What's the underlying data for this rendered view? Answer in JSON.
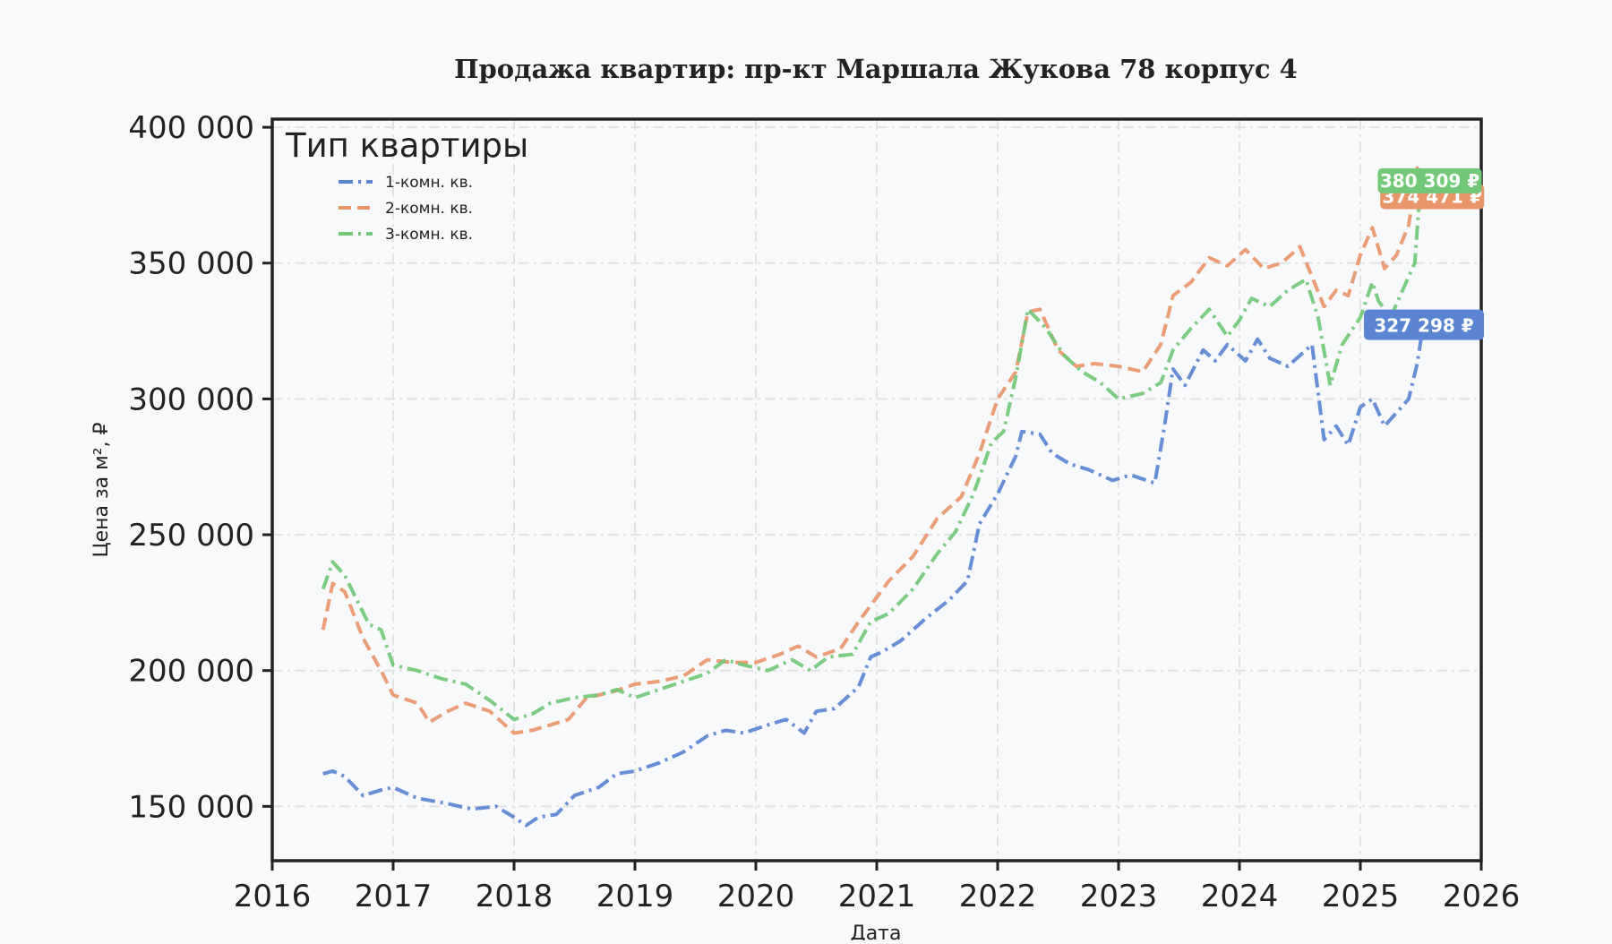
{
  "chart_data": {
    "type": "line",
    "title": "Продажа квартир: пр-кт Маршала Жукова 78 корпус 4",
    "xlabel": "Дата",
    "ylabel": "Цена за м², ₽",
    "xlim": [
      2016,
      2026
    ],
    "ylim": [
      130000,
      403000
    ],
    "x_ticks": [
      2016,
      2017,
      2018,
      2019,
      2020,
      2021,
      2022,
      2023,
      2024,
      2025,
      2026
    ],
    "x_tick_labels": [
      "2016",
      "2017",
      "2018",
      "2019",
      "2020",
      "2021",
      "2022",
      "2023",
      "2024",
      "2025",
      "2026"
    ],
    "y_ticks": [
      150000,
      200000,
      250000,
      300000,
      350000,
      400000
    ],
    "y_tick_labels": [
      "150 000",
      "200 000",
      "250 000",
      "300 000",
      "350 000",
      "400 000"
    ],
    "grid": true,
    "legend": {
      "title": "Тип квартиры",
      "placement": "top-left"
    },
    "series": [
      {
        "name": "1-комн. кв.",
        "color": "#5b84d2",
        "dash": "dashdot",
        "end_label": "327 298 ₽",
        "x": [
          2016.42,
          2016.5,
          2016.6,
          2016.75,
          2016.9,
          2017.0,
          2017.2,
          2017.45,
          2017.65,
          2017.85,
          2018.0,
          2018.1,
          2018.2,
          2018.35,
          2018.5,
          2018.7,
          2018.85,
          2019.0,
          2019.2,
          2019.4,
          2019.6,
          2019.75,
          2019.9,
          2020.1,
          2020.25,
          2020.4,
          2020.5,
          2020.65,
          2020.85,
          2020.95,
          2021.05,
          2021.2,
          2021.4,
          2021.6,
          2021.75,
          2021.85,
          2022.0,
          2022.15,
          2022.2,
          2022.35,
          2022.45,
          2022.6,
          2022.75,
          2022.95,
          2023.1,
          2023.3,
          2023.38,
          2023.45,
          2023.55,
          2023.7,
          2023.8,
          2023.9,
          2024.05,
          2024.15,
          2024.25,
          2024.4,
          2024.5,
          2024.6,
          2024.7,
          2024.8,
          2024.9,
          2025.0,
          2025.1,
          2025.2,
          2025.3,
          2025.4,
          2025.47,
          2025.52
        ],
        "y": [
          162000,
          163000,
          161000,
          154000,
          156000,
          157000,
          153000,
          151000,
          149000,
          150000,
          146000,
          143000,
          146000,
          147000,
          154000,
          157000,
          162000,
          163000,
          166000,
          170000,
          176000,
          178000,
          177000,
          180000,
          182000,
          177000,
          185000,
          186000,
          194000,
          205000,
          207000,
          211000,
          219000,
          226000,
          233000,
          254000,
          265000,
          279000,
          288000,
          287000,
          280000,
          276000,
          274000,
          270000,
          272000,
          269000,
          290000,
          311000,
          305000,
          318000,
          314000,
          320000,
          314000,
          322000,
          315000,
          312000,
          316000,
          320000,
          285000,
          290000,
          283000,
          297000,
          300000,
          290000,
          295000,
          300000,
          313000,
          327298
        ]
      },
      {
        "name": "2-комн. кв.",
        "color": "#e8956a",
        "dash": "dashed",
        "end_label": "374 471 ₽",
        "x": [
          2016.42,
          2016.5,
          2016.6,
          2016.75,
          2016.9,
          2017.0,
          2017.2,
          2017.3,
          2017.45,
          2017.6,
          2017.8,
          2018.0,
          2018.15,
          2018.3,
          2018.45,
          2018.6,
          2018.8,
          2019.0,
          2019.2,
          2019.4,
          2019.6,
          2019.8,
          2020.0,
          2020.2,
          2020.35,
          2020.5,
          2020.7,
          2020.85,
          2020.95,
          2021.1,
          2021.3,
          2021.5,
          2021.7,
          2021.85,
          2022.0,
          2022.15,
          2022.25,
          2022.35,
          2022.5,
          2022.65,
          2022.8,
          2023.0,
          2023.2,
          2023.35,
          2023.45,
          2023.6,
          2023.75,
          2023.9,
          2024.05,
          2024.2,
          2024.35,
          2024.5,
          2024.6,
          2024.7,
          2024.8,
          2024.9,
          2025.0,
          2025.1,
          2025.2,
          2025.3,
          2025.4,
          2025.47,
          2025.52
        ],
        "y": [
          215000,
          232000,
          229000,
          212000,
          200000,
          191000,
          188000,
          181000,
          185000,
          188000,
          185000,
          177000,
          178000,
          180000,
          182000,
          190000,
          192000,
          195000,
          196000,
          198000,
          204000,
          203000,
          203000,
          206000,
          209000,
          205000,
          208000,
          218000,
          224000,
          233000,
          242000,
          256000,
          264000,
          280000,
          300000,
          310000,
          332000,
          333000,
          318000,
          312000,
          313000,
          312000,
          310000,
          320000,
          338000,
          343000,
          352000,
          349000,
          355000,
          348000,
          350000,
          356000,
          345000,
          334000,
          340000,
          338000,
          353000,
          363000,
          348000,
          353000,
          364000,
          385000,
          374471
        ]
      },
      {
        "name": "3-комн. кв.",
        "color": "#72c878",
        "dash": "dashdot",
        "end_label": "380 309 ₽",
        "x": [
          2016.42,
          2016.5,
          2016.6,
          2016.7,
          2016.8,
          2016.9,
          2017.0,
          2017.2,
          2017.4,
          2017.6,
          2017.8,
          2018.0,
          2018.15,
          2018.3,
          2018.5,
          2018.7,
          2018.85,
          2019.0,
          2019.2,
          2019.4,
          2019.6,
          2019.75,
          2019.9,
          2020.1,
          2020.3,
          2020.45,
          2020.6,
          2020.8,
          2020.95,
          2021.1,
          2021.3,
          2021.5,
          2021.65,
          2021.8,
          2021.95,
          2022.05,
          2022.15,
          2022.25,
          2022.4,
          2022.55,
          2022.7,
          2022.85,
          2023.0,
          2023.2,
          2023.35,
          2023.45,
          2023.6,
          2023.75,
          2023.9,
          2024.0,
          2024.1,
          2024.25,
          2024.4,
          2024.55,
          2024.65,
          2024.75,
          2024.85,
          2025.0,
          2025.1,
          2025.15,
          2025.25,
          2025.35,
          2025.45,
          2025.5
        ],
        "y": [
          230000,
          240000,
          235000,
          226000,
          217000,
          215000,
          202000,
          200000,
          197000,
          195000,
          189000,
          182000,
          184000,
          188000,
          190000,
          191000,
          193000,
          190000,
          193000,
          196000,
          199000,
          204000,
          202000,
          200000,
          204000,
          200000,
          205000,
          206000,
          218000,
          221000,
          230000,
          243000,
          251000,
          265000,
          284000,
          288000,
          308000,
          333000,
          326000,
          316000,
          310000,
          306000,
          300000,
          302000,
          306000,
          318000,
          326000,
          333000,
          323000,
          329000,
          337000,
          334000,
          340000,
          344000,
          330000,
          305000,
          320000,
          330000,
          343000,
          336000,
          330000,
          340000,
          350000,
          380309
        ]
      }
    ]
  }
}
